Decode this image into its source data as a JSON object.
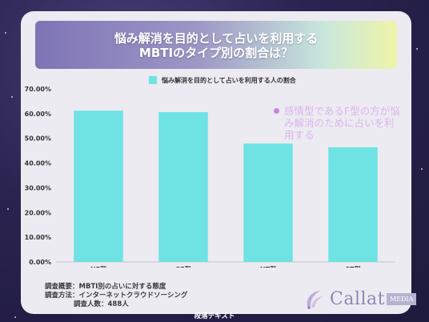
{
  "header": {
    "title_line1": "悩み解消を目的として占いを利用する",
    "title_line2": "MBTIのタイプ別の割合は？"
  },
  "chart_data": {
    "type": "bar",
    "categories": [
      "NF型",
      "SF型",
      "NT型",
      "ST型"
    ],
    "series": [
      {
        "name": "悩み解消を目的として占いを利用する人の割合",
        "values": [
          61.2,
          60.6,
          47.9,
          46.4
        ]
      }
    ],
    "ylim": [
      0,
      70
    ],
    "yticks": [
      0,
      10,
      20,
      30,
      40,
      50,
      60,
      70
    ],
    "ytick_labels": [
      "0.00%",
      "10.00%",
      "20.00%",
      "30.00%",
      "40.00%",
      "50.00%",
      "60.00%",
      "70.00%"
    ],
    "grid": false,
    "legend": "top-center",
    "bar_color": "#6fe3e3",
    "annotation": "感情型であるF型の方が悩み解消のために占いを利用する"
  },
  "survey": {
    "line1": "調査概要：MBTI別の占いに対する態度",
    "line2": "調査方法：インターネットクラウドソーシング",
    "line3": "調査人数：488人"
  },
  "logo": {
    "name": "Callat",
    "badge": "MEDIA"
  },
  "footer": {
    "text": "段落テキスト"
  }
}
